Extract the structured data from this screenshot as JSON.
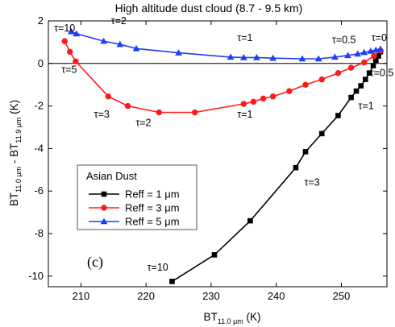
{
  "chart_data": {
    "type": "line",
    "title": "High altitude dust cloud (8.7 - 9.5 km)",
    "xlabel": {
      "main": "BT",
      "sub": "11.0 μm",
      "unit": " (K)"
    },
    "ylabel": {
      "a": "BT",
      "a_sub": "11.0 μm",
      "mid": " - BT",
      "b_sub": "11.9 μm",
      "unit": " (K)"
    },
    "xlim": [
      205,
      257
    ],
    "ylim": [
      -10.5,
      2
    ],
    "xticks": [
      210,
      220,
      230,
      240,
      250
    ],
    "yticks": [
      -10,
      -8,
      -6,
      -4,
      -2,
      0,
      2
    ],
    "panel_label": "(c)",
    "legend": {
      "title": "Asian Dust",
      "placement": "lower-left"
    },
    "series": [
      {
        "name": "Reff = 1 μm",
        "color": "#000000",
        "marker": "square",
        "points": [
          [
            224,
            -10.25
          ],
          [
            230.5,
            -9.0
          ],
          [
            236,
            -7.4
          ],
          [
            243,
            -4.9
          ],
          [
            244.5,
            -4.15
          ],
          [
            247,
            -3.3
          ],
          [
            249.5,
            -2.45
          ],
          [
            251.5,
            -1.6
          ],
          [
            252.3,
            -1.3
          ],
          [
            253,
            -1.05
          ],
          [
            253.7,
            -0.75
          ],
          [
            254.3,
            -0.45
          ],
          [
            254.9,
            -0.1
          ],
          [
            255.3,
            0.15
          ],
          [
            255.7,
            0.35
          ],
          [
            256,
            0.55
          ]
        ]
      },
      {
        "name": "Reff = 3 μm",
        "color": "#ff1a1a",
        "marker": "circle",
        "points": [
          [
            207.5,
            1.05
          ],
          [
            208.3,
            0.55
          ],
          [
            209.2,
            0.1
          ],
          [
            214.2,
            -1.55
          ],
          [
            217.2,
            -2.0
          ],
          [
            222.0,
            -2.3
          ],
          [
            227.5,
            -2.3
          ],
          [
            235.0,
            -1.9
          ],
          [
            236.5,
            -1.8
          ],
          [
            238.0,
            -1.65
          ],
          [
            239.5,
            -1.55
          ],
          [
            242.0,
            -1.3
          ],
          [
            244.5,
            -1.0
          ],
          [
            247.0,
            -0.75
          ],
          [
            249.5,
            -0.45
          ],
          [
            251.5,
            -0.2
          ],
          [
            253.5,
            0.05
          ],
          [
            255.0,
            0.35
          ],
          [
            256.0,
            0.6
          ]
        ]
      },
      {
        "name": "Reff = 5 μm",
        "color": "#1f3df5",
        "marker": "triangle",
        "points": [
          [
            208.5,
            1.5
          ],
          [
            209.3,
            1.4
          ],
          [
            213.5,
            1.05
          ],
          [
            216.0,
            0.9
          ],
          [
            218.5,
            0.7
          ],
          [
            225.0,
            0.5
          ],
          [
            233.0,
            0.3
          ],
          [
            235.0,
            0.28
          ],
          [
            237.0,
            0.28
          ],
          [
            239.5,
            0.25
          ],
          [
            244.0,
            0.22
          ],
          [
            246.5,
            0.22
          ],
          [
            249.0,
            0.3
          ],
          [
            251.0,
            0.38
          ],
          [
            252.5,
            0.45
          ],
          [
            253.5,
            0.52
          ],
          [
            254.5,
            0.58
          ],
          [
            255.3,
            0.63
          ],
          [
            256.0,
            0.68
          ]
        ]
      }
    ],
    "annotations": [
      {
        "text": "τ=10",
        "x": 207.5,
        "y": 1.5,
        "color": "#000000"
      },
      {
        "text": "τ=5",
        "x": 208.2,
        "y": -0.45,
        "color": "#000000"
      },
      {
        "text": "τ=3",
        "x": 213.2,
        "y": -2.55,
        "color": "#000000"
      },
      {
        "text": "τ=2",
        "x": 219.6,
        "y": -2.95,
        "color": "#000000"
      },
      {
        "text": "τ=1",
        "x": 235.2,
        "y": -2.55,
        "color": "#000000"
      },
      {
        "text": "τ=2",
        "x": 215.8,
        "y": 1.85,
        "color": "#000000"
      },
      {
        "text": "τ=1",
        "x": 235.2,
        "y": 1.05,
        "color": "#000000"
      },
      {
        "text": "τ=0.5",
        "x": 250.4,
        "y": 0.95,
        "color": "#000000"
      },
      {
        "text": "τ=0",
        "x": 255.8,
        "y": 1.05,
        "color": "#000000"
      },
      {
        "text": "τ=0.5",
        "x": 256.2,
        "y": -0.6,
        "color": "#000000"
      },
      {
        "text": "τ=1",
        "x": 253.8,
        "y": -2.15,
        "color": "#000000"
      },
      {
        "text": "τ=3",
        "x": 245.5,
        "y": -5.75,
        "color": "#000000"
      },
      {
        "text": "τ=10",
        "x": 221.8,
        "y": -9.75,
        "color": "#000000"
      }
    ]
  }
}
